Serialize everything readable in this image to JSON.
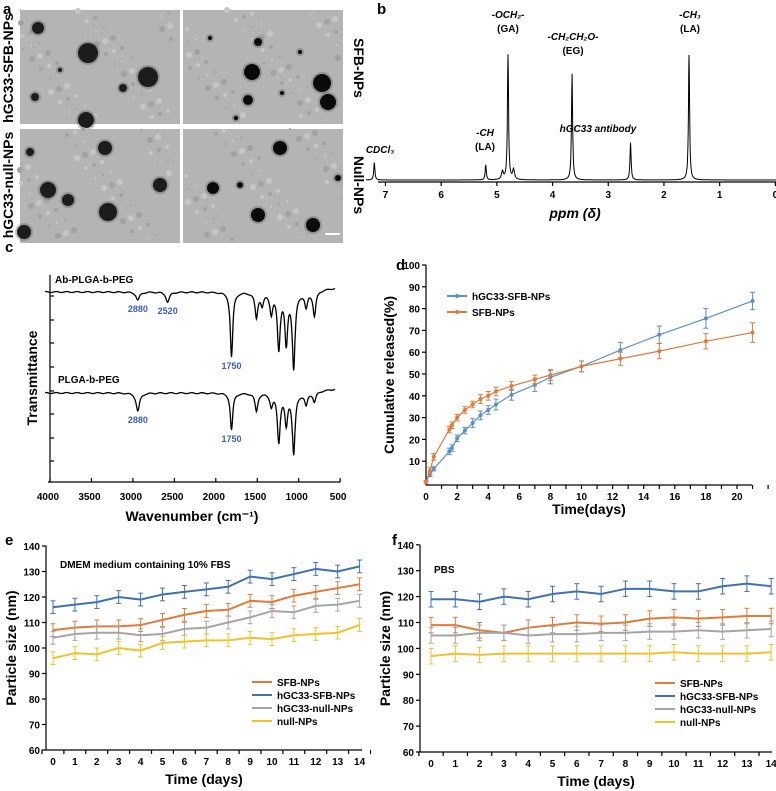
{
  "panel_a": {
    "label": "a",
    "left_labels": [
      "hGC33-SFB-NPs",
      "hGC33-null-NPs"
    ],
    "right_labels": [
      "SFB-NPs",
      "Null-NPs"
    ]
  },
  "chart_data": [
    {
      "panel": "b",
      "type": "line",
      "xlabel": "ppm (δ)",
      "x_ticks": [
        7,
        6,
        5,
        4,
        3,
        2,
        1,
        0
      ],
      "xlim": [
        7.3,
        0
      ],
      "peaks": [
        {
          "ppm": 7.2,
          "intensity": 14,
          "label": "CDCl₃",
          "label2": ""
        },
        {
          "ppm": 5.2,
          "intensity": 12,
          "label": "-CH",
          "label2": "(LA)"
        },
        {
          "ppm": 4.8,
          "intensity": 100,
          "label": "-OCH₂-",
          "label2": "(GA)"
        },
        {
          "ppm": 3.65,
          "intensity": 85,
          "label": "-CH₂CH₂O-",
          "label2": "(EG)"
        },
        {
          "ppm": 2.6,
          "intensity": 30,
          "label": "hGC33 antibody",
          "label2": ""
        },
        {
          "ppm": 1.55,
          "intensity": 100,
          "label": "-CH₃",
          "label2": "(LA)"
        }
      ]
    },
    {
      "panel": "c",
      "type": "line",
      "xlabel": "Wavenumber (cm⁻¹)",
      "ylabel": "Transmittance",
      "x_ticks": [
        4000,
        3500,
        3000,
        2500,
        2000,
        1500,
        1000,
        500
      ],
      "xlim": [
        4000,
        300
      ],
      "series": [
        {
          "name": "Ab-PLGA-b-PEG",
          "bands": [
            {
              "wavenumber": 2880,
              "depth": 8,
              "label": "2880"
            },
            {
              "wavenumber": 2520,
              "depth": 10,
              "label": "2520"
            },
            {
              "wavenumber": 1750,
              "depth": 65,
              "label": "1750"
            },
            {
              "wavenumber": 1450,
              "depth": 25,
              "label": ""
            },
            {
              "wavenumber": 1380,
              "depth": 12,
              "label": ""
            },
            {
              "wavenumber": 1270,
              "depth": 20,
              "label": ""
            },
            {
              "wavenumber": 1180,
              "depth": 55,
              "label": ""
            },
            {
              "wavenumber": 1090,
              "depth": 50,
              "label": ""
            },
            {
              "wavenumber": 1000,
              "depth": 75,
              "label": ""
            },
            {
              "wavenumber": 850,
              "depth": 15,
              "label": ""
            },
            {
              "wavenumber": 750,
              "depth": 25,
              "label": ""
            }
          ]
        },
        {
          "name": "PLGA-b-PEG",
          "bands": [
            {
              "wavenumber": 2880,
              "depth": 18,
              "label": "2880"
            },
            {
              "wavenumber": 1750,
              "depth": 37,
              "label": "1750"
            },
            {
              "wavenumber": 1450,
              "depth": 18,
              "label": ""
            },
            {
              "wavenumber": 1270,
              "depth": 12,
              "label": ""
            },
            {
              "wavenumber": 1180,
              "depth": 48,
              "label": ""
            },
            {
              "wavenumber": 1090,
              "depth": 30,
              "label": ""
            },
            {
              "wavenumber": 1000,
              "depth": 60,
              "label": ""
            },
            {
              "wavenumber": 850,
              "depth": 12,
              "label": ""
            },
            {
              "wavenumber": 750,
              "depth": 10,
              "label": ""
            }
          ]
        }
      ]
    },
    {
      "panel": "d",
      "type": "line",
      "xlabel": "Time(days)",
      "ylabel": "Cumulative released(%)",
      "xlim": [
        0,
        22
      ],
      "ylim": [
        0,
        100
      ],
      "x_ticks": [
        0,
        2,
        4,
        6,
        8,
        10,
        12,
        14,
        16,
        18,
        20
      ],
      "y_ticks": [
        10,
        20,
        30,
        40,
        50,
        60,
        70,
        80,
        90,
        100
      ],
      "legend": "top-left",
      "x": [
        0,
        0.25,
        0.5,
        1.5,
        1.67,
        2,
        2.5,
        3,
        3.5,
        4,
        4.5,
        5.5,
        7,
        8,
        10,
        12.5,
        15,
        18,
        21
      ],
      "series": [
        {
          "name": "hGC33-SFB-NPs",
          "color": "#5b8fc9",
          "values": [
            0.5,
            4,
            6.5,
            14.5,
            16,
            20.5,
            24,
            27.5,
            31,
            33.5,
            36,
            40.5,
            45,
            48.5,
            53.5,
            61,
            68,
            75.5,
            83.5
          ],
          "errors": [
            0.5,
            1,
            1,
            1.5,
            1.5,
            1.5,
            1.5,
            2,
            2,
            2,
            2.5,
            2.5,
            3,
            3,
            2.5,
            3.5,
            4,
            4.5,
            4
          ]
        },
        {
          "name": "SFB-NPs",
          "color": "#e07b39",
          "values": [
            0.5,
            5.5,
            12,
            24.5,
            26.5,
            30,
            33.5,
            36,
            38.5,
            40,
            42,
            44.5,
            47.5,
            49.5,
            53.5,
            57,
            60.5,
            65,
            69
          ],
          "errors": [
            0.5,
            1.5,
            1.5,
            1.5,
            1.5,
            1.5,
            1.5,
            1.5,
            2,
            2,
            2,
            2,
            2,
            2.5,
            2.5,
            3,
            3.5,
            3.5,
            4.5
          ]
        }
      ]
    },
    {
      "panel": "e",
      "type": "line",
      "title": "DMEM medium containing 10% FBS",
      "xlabel": "Time (days)",
      "ylabel": "Particle size (nm)",
      "xlim": [
        0,
        14
      ],
      "ylim": [
        60,
        140
      ],
      "x": [
        0,
        1,
        2,
        3,
        4,
        5,
        6,
        7,
        8,
        9,
        10,
        11,
        12,
        13,
        14
      ],
      "y_ticks": [
        60,
        70,
        80,
        90,
        100,
        110,
        120,
        130,
        140
      ],
      "legend": "bottom-right",
      "series": [
        {
          "name": "SFB-NPs",
          "color": "#e07b39",
          "values": [
            107,
            108,
            108.5,
            108.5,
            109,
            111,
            113,
            114.5,
            115,
            118.5,
            118,
            120.5,
            122,
            123.5,
            125
          ]
        },
        {
          "name": "hGC33-SFB-NPs",
          "color": "#3f72af",
          "values": [
            116,
            117,
            118,
            120,
            119,
            121,
            122,
            123,
            124,
            128,
            127,
            129,
            131,
            130,
            132
          ]
        },
        {
          "name": "hGC33-null-NPs",
          "color": "#a5a5a5",
          "values": [
            104,
            105.5,
            106,
            106,
            105,
            105.5,
            107.5,
            108,
            110,
            112,
            114.5,
            114,
            116.5,
            117,
            118.5
          ]
        },
        {
          "name": "null-NPs",
          "color": "#f2c22e",
          "values": [
            96,
            98,
            97.5,
            100,
            99,
            102,
            102.5,
            103,
            103,
            104,
            103.5,
            105,
            105.5,
            106,
            109
          ]
        }
      ]
    },
    {
      "panel": "f",
      "type": "line",
      "title": "PBS",
      "xlabel": "Time (days)",
      "ylabel": "Particle size (nm)",
      "xlim": [
        0,
        14
      ],
      "ylim": [
        60,
        140
      ],
      "x": [
        0,
        1,
        2,
        3,
        4,
        5,
        6,
        7,
        8,
        9,
        10,
        11,
        12,
        13,
        14
      ],
      "y_ticks": [
        60,
        70,
        80,
        90,
        100,
        110,
        120,
        130,
        140
      ],
      "legend": "bottom-right",
      "series": [
        {
          "name": "SFB-NPs",
          "color": "#e07b39",
          "values": [
            109,
            109,
            107,
            106,
            108,
            109,
            110,
            109.5,
            110,
            111.5,
            112,
            111.5,
            112,
            112.5,
            112.5
          ]
        },
        {
          "name": "hGC33-SFB-NPs",
          "color": "#3f72af",
          "values": [
            119,
            119,
            118,
            120,
            119,
            121,
            122,
            121,
            123,
            123,
            122,
            122,
            124,
            125,
            124
          ]
        },
        {
          "name": "hGC33-null-NPs",
          "color": "#a5a5a5",
          "values": [
            105,
            105,
            106,
            106,
            105,
            105.5,
            105.5,
            106,
            106,
            106.5,
            106.5,
            107,
            106.5,
            107,
            107.5
          ]
        },
        {
          "name": "null-NPs",
          "color": "#f2c22e",
          "values": [
            97,
            98,
            97.5,
            98,
            98,
            98,
            98,
            98,
            98,
            98,
            98.5,
            98,
            98,
            98,
            98.5
          ]
        }
      ]
    }
  ],
  "panel_labels": {
    "b": "b",
    "c": "c",
    "d": "d",
    "e": "e",
    "f": "f"
  }
}
